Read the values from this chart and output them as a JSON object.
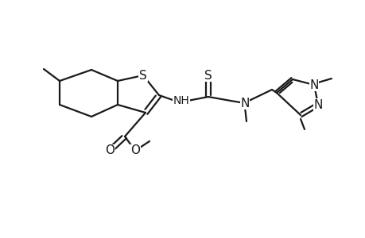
{
  "background_color": "#ffffff",
  "line_color": "#1a1a1a",
  "line_width": 1.6,
  "font_size": 10,
  "figsize": [
    4.6,
    3.0
  ],
  "dpi": 100,
  "xlim": [
    0,
    460
  ],
  "ylim": [
    0,
    300
  ]
}
